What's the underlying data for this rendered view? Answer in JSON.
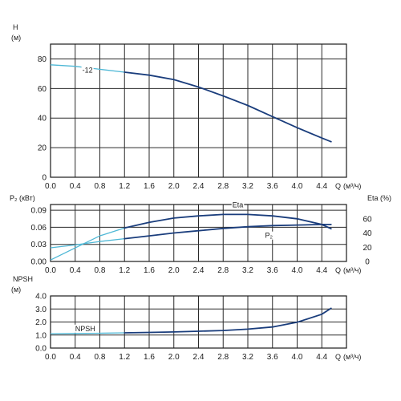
{
  "chart_data": [
    {
      "type": "line",
      "ylabel": "H",
      "yunit": "(м)",
      "xlabel": "Q",
      "xunit": "(м³/ч)",
      "xlim": [
        0,
        4.8
      ],
      "ylim": [
        0,
        90
      ],
      "xticks": [
        "0.0",
        "0.4",
        "0.8",
        "1.2",
        "1.6",
        "2.0",
        "2.4",
        "2.8",
        "3.2",
        "3.6",
        "4.0",
        "4.4"
      ],
      "yticks": [
        "0",
        "20",
        "40",
        "60",
        "80"
      ],
      "grid": true,
      "series": [
        {
          "name": "-12",
          "color": "#1a3d7c",
          "extrapolated_color": "#4fb8d6",
          "x": [
            0.0,
            0.4,
            0.8,
            1.2,
            1.6,
            2.0,
            2.4,
            2.8,
            3.2,
            3.6,
            4.0,
            4.4,
            4.55
          ],
          "y": [
            76,
            75,
            73,
            71,
            69,
            66,
            61,
            55,
            48.5,
            41,
            33.5,
            26.5,
            24
          ]
        }
      ]
    },
    {
      "type": "line",
      "ylabel": "P₂ (кВт)",
      "ylabel_right": "Eta (%)",
      "xlabel": "Q",
      "xunit": "(м³/ч)",
      "xlim": [
        0,
        4.8
      ],
      "ylim": [
        0,
        0.1
      ],
      "ylim_right": [
        0,
        80
      ],
      "xticks": [
        "0.0",
        "0.4",
        "0.8",
        "1.2",
        "1.6",
        "2.0",
        "2.4",
        "2.8",
        "3.2",
        "3.6",
        "4.0",
        "4.4"
      ],
      "yticks": [
        "0.00",
        "0.03",
        "0.06",
        "0.09"
      ],
      "yticks_right": [
        "0",
        "20",
        "40",
        "60"
      ],
      "grid": true,
      "series": [
        {
          "name": "Eta",
          "axis": "right",
          "color": "#1a3d7c",
          "extrapolated_color": "#4fb8d6",
          "x": [
            0.0,
            0.4,
            0.8,
            1.2,
            1.6,
            2.0,
            2.4,
            2.8,
            3.2,
            3.6,
            4.0,
            4.4,
            4.55
          ],
          "y": [
            2,
            19,
            36,
            47,
            55,
            61,
            64,
            66,
            66,
            64,
            60,
            52,
            46
          ]
        },
        {
          "name": "P₂",
          "axis": "left",
          "color": "#1a3d7c",
          "extrapolated_color": "#4fb8d6",
          "x": [
            0.0,
            0.4,
            0.8,
            1.2,
            1.6,
            2.0,
            2.4,
            2.8,
            3.2,
            3.6,
            4.0,
            4.4,
            4.55
          ],
          "y": [
            0.024,
            0.029,
            0.035,
            0.04,
            0.045,
            0.05,
            0.054,
            0.058,
            0.061,
            0.063,
            0.064,
            0.065,
            0.065
          ]
        }
      ]
    },
    {
      "type": "line",
      "ylabel": "NPSH",
      "yunit": "(м)",
      "xlabel": "Q",
      "xunit": "(м³/ч)",
      "xlim": [
        0,
        4.8
      ],
      "ylim": [
        0,
        4.0
      ],
      "xticks": [
        "0.0",
        "0.4",
        "0.8",
        "1.2",
        "1.6",
        "2.0",
        "2.4",
        "2.8",
        "3.2",
        "3.6",
        "4.0",
        "4.4"
      ],
      "yticks": [
        "0.0",
        "1.0",
        "2.0",
        "3.0",
        "4.0"
      ],
      "grid": true,
      "series": [
        {
          "name": "NPSH",
          "color": "#1a3d7c",
          "extrapolated_color": "#4fb8d6",
          "x": [
            0.0,
            0.4,
            0.8,
            1.2,
            1.6,
            2.0,
            2.4,
            2.8,
            3.2,
            3.6,
            4.0,
            4.4,
            4.55
          ],
          "y": [
            1.1,
            1.12,
            1.14,
            1.17,
            1.2,
            1.24,
            1.29,
            1.35,
            1.45,
            1.62,
            1.98,
            2.6,
            3.05
          ]
        }
      ]
    }
  ]
}
